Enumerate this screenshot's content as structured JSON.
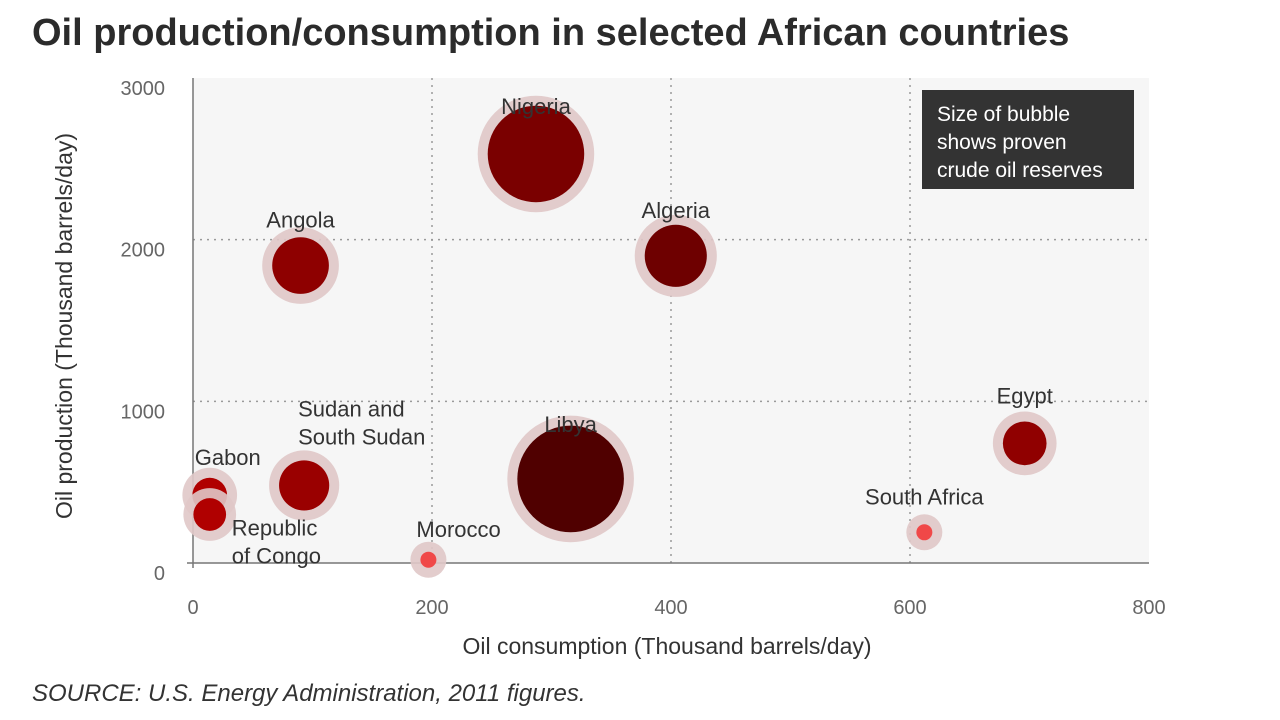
{
  "title": "Oil production/consumption in selected African countries",
  "source": "SOURCE: U.S. Energy Administration, 2011 figures.",
  "chart_data": {
    "type": "scatter",
    "xlabel": "Oil consumption (Thousand barrels/day)",
    "ylabel": "Oil production (Thousand barrels/day)",
    "xlim": [
      0,
      800
    ],
    "ylim": [
      0,
      3000
    ],
    "xticks": [
      "0",
      "200",
      "400",
      "600",
      "800"
    ],
    "yticks": [
      "0",
      "1000",
      "2000",
      "3000"
    ],
    "grid": true,
    "note": [
      "Size of bubble",
      "shows proven",
      "crude oil reserves"
    ],
    "points": [
      {
        "label": [
          "Nigeria"
        ],
        "x": 287,
        "y": 2530,
        "size": 37.2,
        "color": "#7a0000"
      },
      {
        "label": [
          "Algeria"
        ],
        "x": 404,
        "y": 1900,
        "size": 12.2,
        "color": "#6e0000"
      },
      {
        "label": [
          "Angola"
        ],
        "x": 90,
        "y": 1840,
        "size": 9.5,
        "color": "#8e0000"
      },
      {
        "label": [
          "Libya"
        ],
        "x": 316,
        "y": 520,
        "size": 47.1,
        "color": "#500000"
      },
      {
        "label": [
          "Egypt"
        ],
        "x": 696,
        "y": 740,
        "size": 4.4,
        "color": "#900000"
      },
      {
        "label": [
          "Sudan and",
          "South Sudan"
        ],
        "x": 93,
        "y": 480,
        "size": 6.7,
        "color": "#9a0000"
      },
      {
        "label": [
          "Gabon"
        ],
        "x": 14,
        "y": 420,
        "size": 2.0,
        "color": "#b00000"
      },
      {
        "label": [
          "Republic",
          "of Congo"
        ],
        "x": 14,
        "y": 300,
        "size": 1.6,
        "color": "#b00000"
      },
      {
        "label": [
          "Morocco"
        ],
        "x": 197,
        "y": 20,
        "size": 0.0,
        "color": "#f04848"
      },
      {
        "label": [
          "South Africa"
        ],
        "x": 612,
        "y": 190,
        "size": 0.0,
        "color": "#f04848"
      }
    ]
  }
}
